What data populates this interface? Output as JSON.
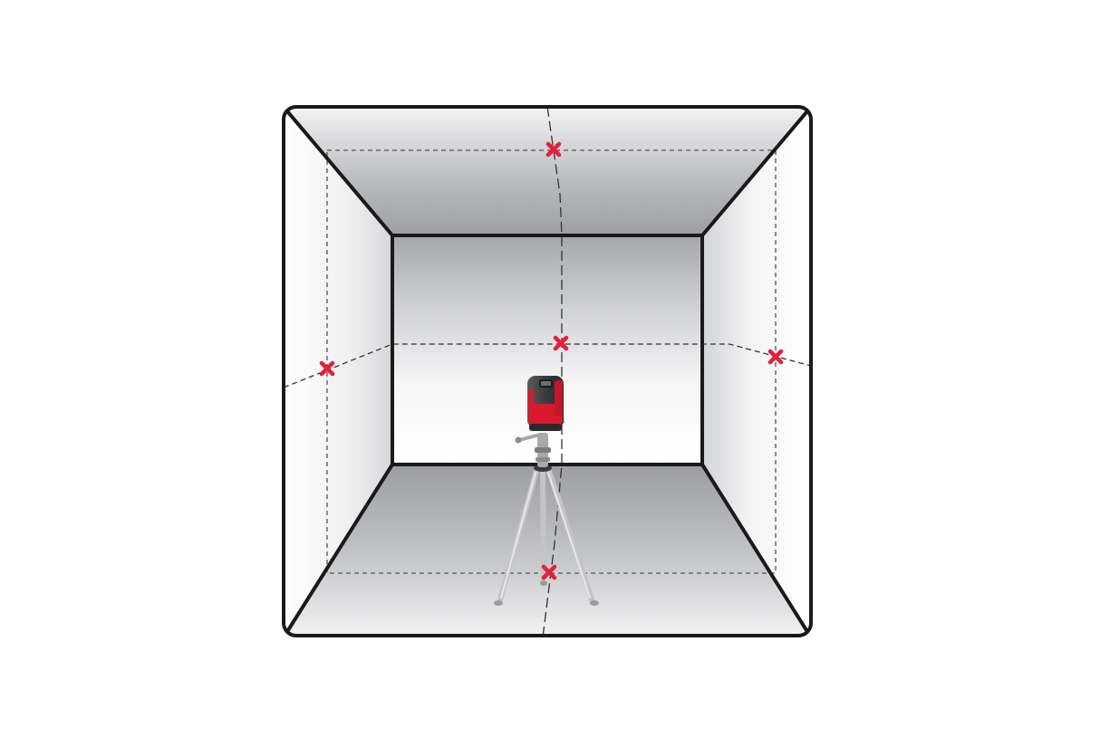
{
  "figure": {
    "subject": "room-with-cross-line-laser-level-on-tripod",
    "colors": {
      "background": "#ffffff",
      "outline": "#1a1a1a",
      "laser_line": "#333333",
      "laser_mark": "#e4203a",
      "level_body": "#3a3a3a",
      "level_accent": "#d9182d",
      "tripod": "#c8c8c8"
    },
    "surfaces": [
      "ceiling",
      "floor",
      "left-wall",
      "right-wall",
      "back-wall"
    ],
    "laser_lines": [
      "horizontal-level-line",
      "vertical-plumb-line"
    ],
    "laser_marks": [
      "ceiling-mark",
      "back-wall-mark",
      "left-wall-mark",
      "right-wall-mark",
      "floor-mark"
    ],
    "device": {
      "name": "cross-line-laser-level",
      "mount": "tripod"
    }
  }
}
